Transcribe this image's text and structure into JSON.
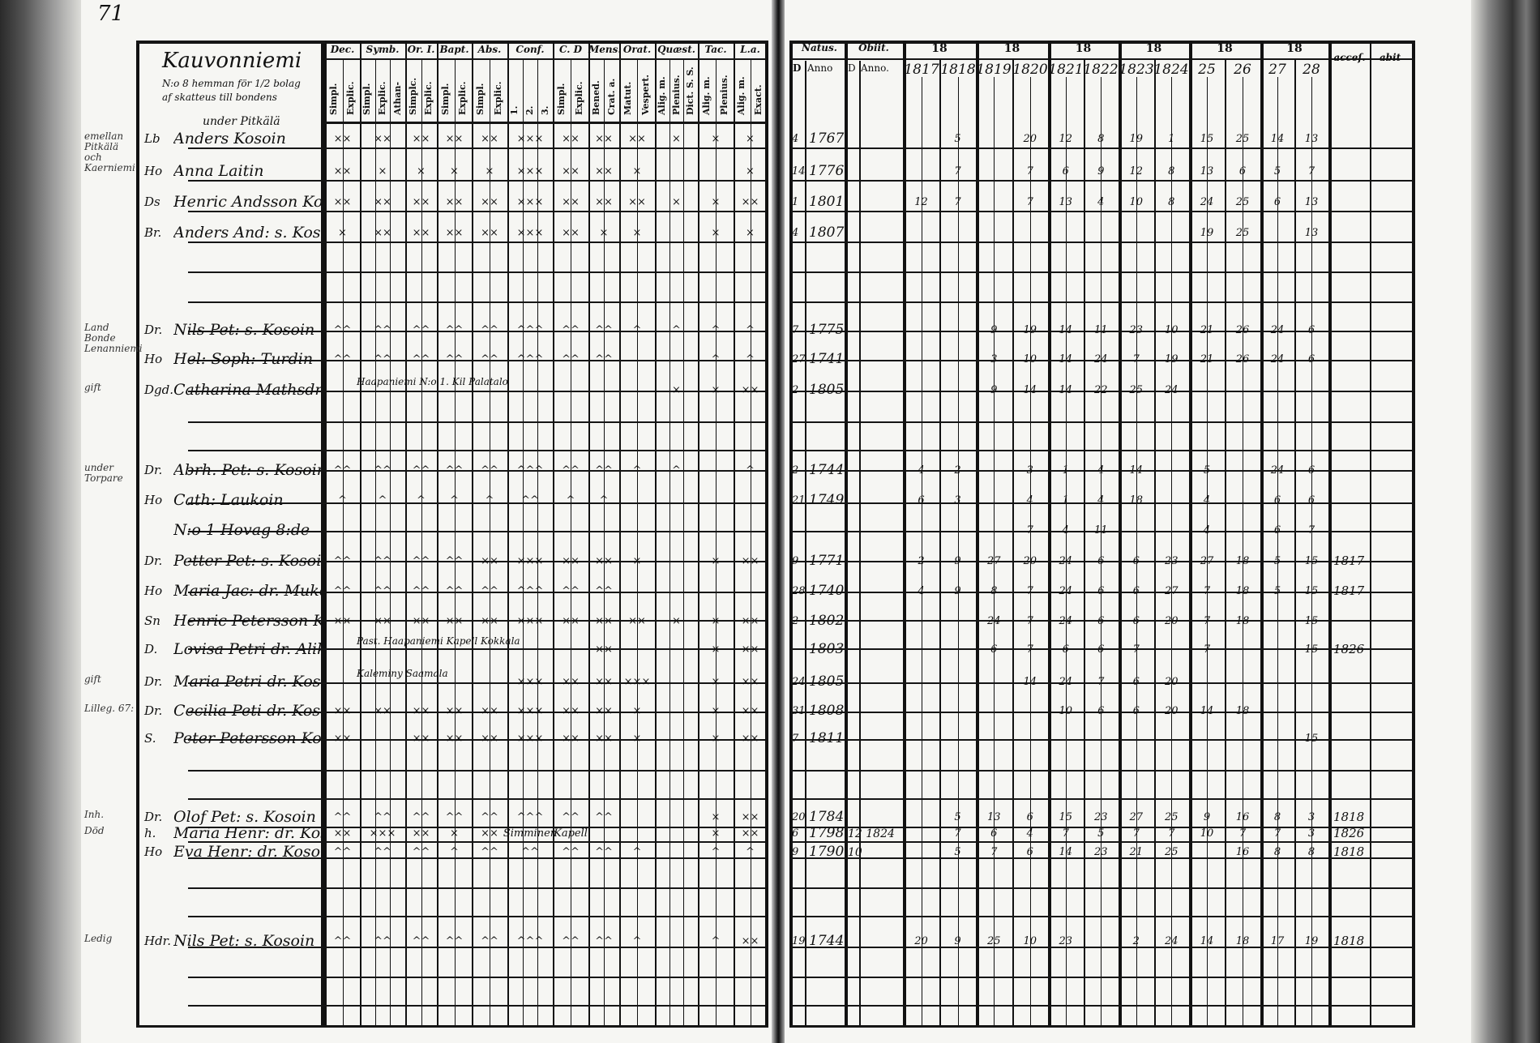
{
  "page_number": "71",
  "left": {
    "village": "Kauvonniemi",
    "subtitle_1": "N:o 8 hemman för 1/2 bolag",
    "subtitle_2": "af skatteus till bondens",
    "groups": [
      "Dec.",
      "Symb.",
      "Or. I.",
      "Bapt.",
      "Abs.",
      "Conf.",
      "C. D",
      "Mens.",
      "Orat.",
      "Quæst.",
      "Tac.",
      "L.a."
    ],
    "subcolumns": [
      "Simpl.",
      "Explic.",
      "Simpl.",
      "Explic.",
      "Athan-",
      "Simplc.",
      "Explic.",
      "Simpl.",
      "Explic.",
      "Simpl.",
      "Explic.",
      "1.",
      "2.",
      "3.",
      "Simpl.",
      "Explic.",
      "Bened.",
      "Crat. a.",
      "Matut.",
      "Vespert.",
      "Alig. m.",
      "Plenius.",
      "Dict. S. S.",
      "Alig. m.",
      "Plenius.",
      "Alig. m.",
      "Exact."
    ]
  },
  "right": {
    "natus": "Natus.",
    "obiit": "Obiit.",
    "d_label": "D",
    "anno": "Anno",
    "d_label_2": "D",
    "anno_2": "Anno.",
    "century_groups": [
      "18",
      "18",
      "18",
      "18",
      "18",
      "18"
    ],
    "years": [
      "1817",
      "1818",
      "1819",
      "1820",
      "1821",
      "1822",
      "1823",
      "1824",
      "25",
      "26",
      "27",
      "28"
    ],
    "accessit": "acceſ.",
    "abiit": "abit"
  },
  "rows": [
    {
      "margin": "emellan Pitkälä och Kaerniemi",
      "above": "under Pitkälä",
      "prefix": "Lb",
      "name": "Anders Kosoin",
      "marks": [
        "××",
        "××",
        "××",
        "××",
        "××",
        "×××",
        "××",
        "××",
        "××",
        "×",
        "×",
        "×"
      ],
      "day": "4",
      "year": "1767",
      "death": "",
      "comm": [
        "",
        "5",
        "",
        "20",
        "12",
        "8",
        "19",
        "1",
        "15",
        "25",
        "14",
        "13"
      ],
      "acc": ""
    },
    {
      "margin": "",
      "above": "",
      "prefix": "Ho",
      "name": "Anna Laitin",
      "marks": [
        "××",
        "×",
        "×",
        "×",
        "×",
        "×××",
        "××",
        "××",
        "×",
        "",
        "",
        "×"
      ],
      "day": "14",
      "year": "1776",
      "death": "",
      "comm": [
        "",
        "7",
        "",
        "7",
        "6",
        "9",
        "12",
        "8",
        "13",
        "6",
        "5",
        "7"
      ],
      "acc": ""
    },
    {
      "margin": "",
      "above": "",
      "prefix": "Ds",
      "name": "Henric Andsson Kosoin",
      "marks": [
        "××",
        "××",
        "××",
        "××",
        "××",
        "×××",
        "××",
        "××",
        "××",
        "×",
        "×",
        "××"
      ],
      "day": "1",
      "year": "1801",
      "death": "",
      "comm": [
        "12",
        "7",
        "",
        "7",
        "13",
        "4",
        "10",
        "8",
        "24",
        "25",
        "6",
        "13"
      ],
      "acc": ""
    },
    {
      "margin": "",
      "above": "",
      "prefix": "Br.",
      "name": "Anders And: s. Kosoin",
      "marks": [
        "×",
        "××",
        "××",
        "××",
        "××",
        "×××",
        "××",
        "×",
        "×",
        "",
        "×",
        "×"
      ],
      "day": "4",
      "year": "1807.",
      "death": "",
      "comm": [
        "",
        "",
        "",
        "",
        "",
        "",
        "",
        "",
        "19",
        "25",
        "",
        "13"
      ],
      "acc": ""
    },
    {
      "margin": "Land Bonde Lenanniemi",
      "above": "",
      "prefix": "Dr.",
      "name": "Nils Pet: s. Kosoin",
      "marks": [
        "^^",
        "^^",
        "^^",
        "^^",
        "^^",
        "^^^",
        "^^",
        "^^",
        "^",
        "^",
        "^",
        "^"
      ],
      "day": "7",
      "year": "1775",
      "death": "",
      "comm": [
        "",
        "",
        "9",
        "19",
        "14",
        "11",
        "23",
        "10",
        "21",
        "26",
        "24",
        "6"
      ],
      "acc": ""
    },
    {
      "margin": "",
      "above": "",
      "prefix": "Ho",
      "name": "Hel: Soph: Turdin",
      "marks": [
        "^^",
        "^^",
        "^^",
        "^^",
        "^^",
        "^^^",
        "^^",
        "^^",
        "",
        "",
        "^",
        "^"
      ],
      "day": "27",
      "year": "1741",
      "death": "",
      "comm": [
        "",
        "",
        "3",
        "10",
        "14",
        "24",
        "7",
        "19",
        "21",
        "26",
        "24",
        "6"
      ],
      "acc": ""
    },
    {
      "margin": "gift",
      "above": "",
      "prefix": "Dgd.",
      "name": "Catharina Mathsdr: Turdin",
      "note": "Haapaniemi N:o 1. Kil Palatalo",
      "marks": [
        "",
        "",
        "",
        "",
        "",
        "",
        "",
        "",
        "",
        "×",
        "×",
        "××"
      ],
      "day": "2",
      "year": "1805.",
      "death": "",
      "comm": [
        "",
        "",
        "9",
        "14",
        "14",
        "22",
        "25",
        "24",
        "",
        "",
        "",
        ""
      ],
      "acc": ""
    },
    {
      "margin": "under Torpare",
      "above": "",
      "prefix": "Dr.",
      "name": "Abrh. Pet: s. Kosoin",
      "marks": [
        "^^",
        "^^",
        "^^",
        "^^",
        "^^",
        "^^^",
        "^^",
        "^^",
        "^",
        "^",
        "",
        "^"
      ],
      "day": "2",
      "year": "1744",
      "death": "",
      "comm": [
        "4",
        "2",
        "",
        "3",
        "1",
        "4",
        "14",
        "",
        "5",
        "",
        "24",
        "6"
      ],
      "acc": ""
    },
    {
      "margin": "",
      "above": "",
      "prefix": "Ho",
      "name": "Cath: Laukoin",
      "marks": [
        "^",
        "^",
        "^",
        "^",
        "^",
        "^^",
        "^",
        "^",
        "",
        "",
        "",
        ""
      ],
      "day": "21",
      "year": "1749",
      "death": "",
      "comm": [
        "6",
        "3",
        "",
        "4",
        "1",
        "4",
        "18",
        "",
        "4",
        "",
        "6",
        "6"
      ],
      "acc": ""
    },
    {
      "margin": "",
      "above": "",
      "prefix": "",
      "name": "N:o 1 Hovag 8:de",
      "marks": [
        "",
        "",
        "",
        "",
        "",
        "",
        "",
        "",
        "",
        "",
        "",
        ""
      ],
      "day": "",
      "year": "",
      "death": "",
      "comm": [
        "",
        "",
        "",
        "7",
        "4",
        "11",
        "",
        "",
        "4",
        "",
        "6",
        "7"
      ],
      "acc": ""
    },
    {
      "margin": "",
      "above": "",
      "prefix": "Dr.",
      "name": "Petter Pet: s. Kosoin",
      "marks": [
        "^^",
        "^^",
        "^^",
        "^^",
        "××",
        "×××",
        "××",
        "××",
        "×",
        "",
        "×",
        "××"
      ],
      "day": "9",
      "year": "1771",
      "death": "",
      "comm": [
        "2",
        "9",
        "27",
        "20",
        "24",
        "6",
        "6",
        "23",
        "27",
        "18",
        "5",
        "15"
      ],
      "acc": "1817"
    },
    {
      "margin": "",
      "above": "",
      "prefix": "Ho",
      "name": "Maria Jac: dr. Mukoin",
      "marks": [
        "^^",
        "^^",
        "^^",
        "^^",
        "^^",
        "^^^",
        "^^",
        "^^",
        "",
        "",
        "",
        ""
      ],
      "day": "28",
      "year": "1740",
      "death": "",
      "comm": [
        "4",
        "9",
        "8",
        "7",
        "24",
        "6",
        "6",
        "27",
        "7",
        "18",
        "5",
        "15"
      ],
      "acc": "1817"
    },
    {
      "margin": "",
      "above": "",
      "prefix": "Sn",
      "name": "Henric Petersson Kosoin",
      "marks": [
        "××",
        "××",
        "××",
        "××",
        "××",
        "×××",
        "××",
        "××",
        "××",
        "×",
        "×",
        "××"
      ],
      "day": "2",
      "year": "1802",
      "death": "",
      "comm": [
        "",
        "",
        "24",
        "7",
        "24",
        "6",
        "6",
        "20",
        "7",
        "18",
        "",
        "15"
      ],
      "acc": ""
    },
    {
      "margin": "",
      "above": "",
      "prefix": "D.",
      "name": "Lovisa Petri dr. Alikoin",
      "note": "Past. Haapaniemi Kapell Kokkala",
      "marks": [
        "",
        "",
        "",
        "",
        "",
        "",
        "",
        "××",
        "",
        "",
        "×",
        "××"
      ],
      "day": "",
      "year": "1803",
      "death": "",
      "comm": [
        "",
        "",
        "6",
        "7",
        "6",
        "6",
        "7",
        "",
        "7",
        "",
        "",
        "15"
      ],
      "acc": "1826"
    },
    {
      "margin": "gift",
      "above": "",
      "prefix": "Dr.",
      "name": "Maria Petri dr. Kosoin",
      "note": "Kaleminy Saamala",
      "marks": [
        "",
        "",
        "",
        "",
        "",
        "×××",
        "××",
        "××",
        "×××",
        "",
        "×",
        "××"
      ],
      "day": "24",
      "year": "1805",
      "death": "",
      "comm": [
        "",
        "",
        "",
        "14",
        "24",
        "7",
        "6",
        "20",
        "",
        "",
        "",
        ""
      ],
      "acc": ""
    },
    {
      "margin": "Lilleg. 67:",
      "above": "",
      "prefix": "Dr.",
      "name": "Cecilia Peti dr. Kosoin",
      "marks": [
        "××",
        "××",
        "××",
        "××",
        "××",
        "×××",
        "××",
        "××",
        "×",
        "",
        "×",
        "××"
      ],
      "day": "31",
      "year": "1808",
      "death": "",
      "comm": [
        "",
        "",
        "",
        "",
        "10",
        "6",
        "6",
        "20",
        "14",
        "18",
        "",
        ""
      ],
      "acc": ""
    },
    {
      "margin": "",
      "above": "",
      "prefix": "S.",
      "name": "Peter Petersson Kosoin",
      "marks": [
        "××",
        "",
        "××",
        "××",
        "××",
        "×××",
        "××",
        "××",
        "×",
        "",
        "×",
        "××"
      ],
      "day": "7",
      "year": "1811.",
      "death": "",
      "comm": [
        "",
        "",
        "",
        "",
        "",
        "",
        "",
        "",
        "",
        "",
        "",
        "15"
      ],
      "acc": ""
    },
    {
      "margin": "Inh.",
      "above": "",
      "prefix": "Dr.",
      "name": "Olof Pet: s. Kosoin",
      "marks": [
        "^^",
        "^^",
        "^^",
        "^^",
        "^^",
        "^^^",
        "^^",
        "^^",
        "",
        "",
        "×",
        "××"
      ],
      "day": "20",
      "year": "1784",
      "death": "",
      "comm": [
        "",
        "5",
        "13",
        "6",
        "15",
        "23",
        "27",
        "25",
        "9",
        "16",
        "8",
        "3"
      ],
      "acc": "1818"
    },
    {
      "margin": "Död",
      "above": "",
      "prefix": "h.",
      "name": "Maria Henr: dr. Kosoin",
      "marks": [
        "××",
        "×××",
        "××",
        "×",
        "××",
        "Simminen",
        "Kapell",
        "",
        "",
        "",
        "×",
        "××"
      ],
      "day": "6",
      "year": "1798",
      "death": "12 1824",
      "comm": [
        "",
        "7",
        "6",
        "4",
        "7",
        "5",
        "7",
        "7",
        "10",
        "7",
        "7",
        "3"
      ],
      "acc": "1826"
    },
    {
      "margin": "",
      "above": "",
      "prefix": "Ho",
      "name": "Eva Henr: dr. Kosoin",
      "marks": [
        "^^",
        "^^",
        "^^",
        "^",
        "^^",
        "^^",
        "^^",
        "^^",
        "^",
        "",
        "^",
        "^"
      ],
      "day": "9",
      "year": "1790",
      "death": "10",
      "comm": [
        "",
        "5",
        "7",
        "6",
        "14",
        "23",
        "21",
        "25",
        "",
        "16",
        "8",
        "8"
      ],
      "acc": "1818"
    },
    {
      "margin": "Ledig",
      "above": "",
      "prefix": "Hdr.",
      "name": "Nils Pet: s. Kosoin",
      "marks": [
        "^^",
        "^^",
        "^^",
        "^^",
        "^^",
        "^^^",
        "^^",
        "^^",
        "^",
        "",
        "^",
        "××"
      ],
      "day": "19",
      "year": "1744",
      "death": "",
      "comm": [
        "20",
        "9",
        "25",
        "10",
        "23",
        "",
        "2",
        "24",
        "14",
        "18",
        "17",
        "19"
      ],
      "acc": "1818"
    }
  ]
}
